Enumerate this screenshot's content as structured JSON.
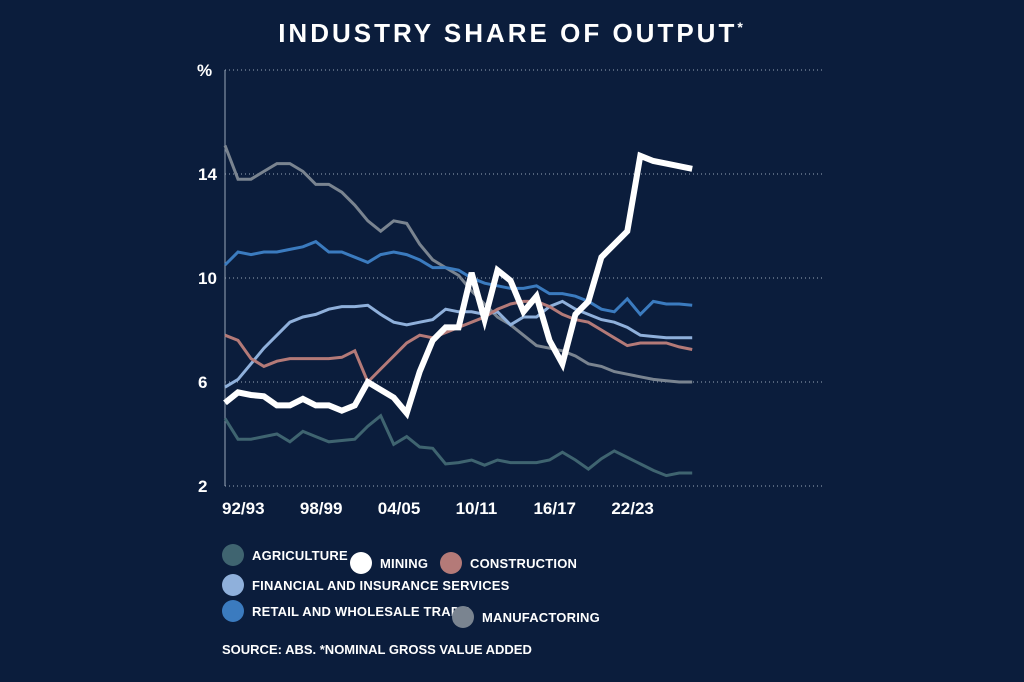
{
  "chart_data": {
    "type": "line",
    "title": "INDUSTRY SHARE OF OUTPUT",
    "title_mark": "*",
    "ylabel": "%",
    "ylim": [
      2,
      18
    ],
    "yticks": [
      2,
      6,
      10,
      14
    ],
    "xlim": [
      0,
      46
    ],
    "xticks": [
      {
        "x": 0,
        "label": "92/93"
      },
      {
        "x": 6,
        "label": "98/99"
      },
      {
        "x": 12,
        "label": "04/05"
      },
      {
        "x": 18,
        "label": "10/11"
      },
      {
        "x": 24,
        "label": "16/17"
      },
      {
        "x": 30,
        "label": "22/23"
      }
    ],
    "grid": true,
    "legend_position": "bottom-left",
    "source": "SOURCE: ABS. *NOMINAL GROSS VALUE ADDED",
    "series": [
      {
        "name": "AGRICULTURE",
        "color": "#3f6470",
        "width": 3,
        "values": [
          [
            0,
            4.6
          ],
          [
            1,
            3.8
          ],
          [
            2,
            3.8
          ],
          [
            3,
            3.9
          ],
          [
            4,
            4.0
          ],
          [
            5,
            3.7
          ],
          [
            6,
            4.1
          ],
          [
            7,
            3.9
          ],
          [
            8,
            3.7
          ],
          [
            9,
            3.75
          ],
          [
            10,
            3.8
          ],
          [
            11,
            4.3
          ],
          [
            12,
            4.7
          ],
          [
            13,
            3.6
          ],
          [
            14,
            3.9
          ],
          [
            15,
            3.5
          ],
          [
            16,
            3.45
          ],
          [
            17,
            2.85
          ],
          [
            18,
            2.9
          ],
          [
            19,
            3.0
          ],
          [
            20,
            2.8
          ],
          [
            21,
            3.0
          ],
          [
            22,
            2.9
          ],
          [
            23,
            2.9
          ],
          [
            24,
            2.9
          ],
          [
            25,
            3.0
          ],
          [
            26,
            3.3
          ],
          [
            27,
            3.0
          ],
          [
            28,
            2.65
          ],
          [
            29,
            3.05
          ],
          [
            30,
            3.35
          ],
          [
            31,
            3.1
          ],
          [
            32,
            2.85
          ],
          [
            33,
            2.6
          ],
          [
            34,
            2.4
          ],
          [
            35,
            2.5
          ],
          [
            36,
            2.5
          ]
        ]
      },
      {
        "name": "MANUFACTORING",
        "color": "#7a8490",
        "width": 3,
        "values": [
          [
            0,
            15.1
          ],
          [
            1,
            13.8
          ],
          [
            2,
            13.8
          ],
          [
            3,
            14.1
          ],
          [
            4,
            14.4
          ],
          [
            5,
            14.4
          ],
          [
            6,
            14.1
          ],
          [
            7,
            13.6
          ],
          [
            8,
            13.6
          ],
          [
            9,
            13.3
          ],
          [
            10,
            12.8
          ],
          [
            11,
            12.2
          ],
          [
            12,
            11.8
          ],
          [
            13,
            12.2
          ],
          [
            14,
            12.1
          ],
          [
            15,
            11.3
          ],
          [
            16,
            10.7
          ],
          [
            17,
            10.4
          ],
          [
            18,
            10.1
          ],
          [
            19,
            9.5
          ],
          [
            20,
            9.0
          ],
          [
            21,
            8.5
          ],
          [
            22,
            8.2
          ],
          [
            23,
            7.8
          ],
          [
            24,
            7.4
          ],
          [
            25,
            7.3
          ],
          [
            26,
            7.2
          ],
          [
            27,
            7.0
          ],
          [
            28,
            6.7
          ],
          [
            29,
            6.6
          ],
          [
            30,
            6.4
          ],
          [
            31,
            6.3
          ],
          [
            32,
            6.2
          ],
          [
            33,
            6.1
          ],
          [
            34,
            6.05
          ],
          [
            35,
            6.0
          ],
          [
            36,
            6.0
          ]
        ]
      },
      {
        "name": "RETAIL AND WHOLESALE TRADE",
        "color": "#3b7bbf",
        "width": 3,
        "values": [
          [
            0,
            10.5
          ],
          [
            1,
            11.0
          ],
          [
            2,
            10.9
          ],
          [
            3,
            11.0
          ],
          [
            4,
            11.0
          ],
          [
            5,
            11.1
          ],
          [
            6,
            11.2
          ],
          [
            7,
            11.4
          ],
          [
            8,
            11.0
          ],
          [
            9,
            11.0
          ],
          [
            10,
            10.8
          ],
          [
            11,
            10.6
          ],
          [
            12,
            10.9
          ],
          [
            13,
            11.0
          ],
          [
            14,
            10.9
          ],
          [
            15,
            10.7
          ],
          [
            16,
            10.4
          ],
          [
            17,
            10.4
          ],
          [
            18,
            10.3
          ],
          [
            19,
            10.0
          ],
          [
            20,
            9.8
          ],
          [
            21,
            9.7
          ],
          [
            22,
            9.6
          ],
          [
            23,
            9.6
          ],
          [
            24,
            9.7
          ],
          [
            25,
            9.4
          ],
          [
            26,
            9.4
          ],
          [
            27,
            9.3
          ],
          [
            28,
            9.1
          ],
          [
            29,
            8.8
          ],
          [
            30,
            8.7
          ],
          [
            31,
            9.2
          ],
          [
            32,
            8.6
          ],
          [
            33,
            9.1
          ],
          [
            34,
            9.0
          ],
          [
            35,
            9.0
          ],
          [
            36,
            8.95
          ]
        ]
      },
      {
        "name": "FINANCIAL AND INSURANCE SERVICES",
        "color": "#8fb0db",
        "width": 3,
        "values": [
          [
            0,
            5.8
          ],
          [
            1,
            6.1
          ],
          [
            2,
            6.7
          ],
          [
            3,
            7.3
          ],
          [
            4,
            7.8
          ],
          [
            5,
            8.3
          ],
          [
            6,
            8.5
          ],
          [
            7,
            8.6
          ],
          [
            8,
            8.8
          ],
          [
            9,
            8.9
          ],
          [
            10,
            8.9
          ],
          [
            11,
            8.95
          ],
          [
            12,
            8.6
          ],
          [
            13,
            8.3
          ],
          [
            14,
            8.2
          ],
          [
            15,
            8.3
          ],
          [
            16,
            8.4
          ],
          [
            17,
            8.8
          ],
          [
            18,
            8.7
          ],
          [
            19,
            8.7
          ],
          [
            20,
            8.6
          ],
          [
            21,
            8.7
          ],
          [
            22,
            8.2
          ],
          [
            23,
            8.5
          ],
          [
            24,
            8.5
          ],
          [
            25,
            8.9
          ],
          [
            26,
            9.1
          ],
          [
            27,
            8.8
          ],
          [
            28,
            8.6
          ],
          [
            29,
            8.4
          ],
          [
            30,
            8.3
          ],
          [
            31,
            8.1
          ],
          [
            32,
            7.8
          ],
          [
            33,
            7.75
          ],
          [
            34,
            7.7
          ],
          [
            35,
            7.7
          ],
          [
            36,
            7.7
          ]
        ]
      },
      {
        "name": "CONSTRUCTION",
        "color": "#b47a78",
        "width": 3,
        "values": [
          [
            0,
            7.8
          ],
          [
            1,
            7.6
          ],
          [
            2,
            6.9
          ],
          [
            3,
            6.6
          ],
          [
            4,
            6.8
          ],
          [
            5,
            6.9
          ],
          [
            6,
            6.9
          ],
          [
            7,
            6.9
          ],
          [
            8,
            6.9
          ],
          [
            9,
            6.95
          ],
          [
            10,
            7.2
          ],
          [
            11,
            6.0
          ],
          [
            12,
            6.5
          ],
          [
            13,
            7.0
          ],
          [
            14,
            7.5
          ],
          [
            15,
            7.8
          ],
          [
            16,
            7.7
          ],
          [
            17,
            7.9
          ],
          [
            18,
            8.1
          ],
          [
            19,
            8.3
          ],
          [
            20,
            8.5
          ],
          [
            21,
            8.8
          ],
          [
            22,
            9.0
          ],
          [
            23,
            9.1
          ],
          [
            24,
            9.1
          ],
          [
            25,
            8.9
          ],
          [
            26,
            8.6
          ],
          [
            27,
            8.4
          ],
          [
            28,
            8.3
          ],
          [
            29,
            8.0
          ],
          [
            30,
            7.7
          ],
          [
            31,
            7.4
          ],
          [
            32,
            7.5
          ],
          [
            33,
            7.5
          ],
          [
            34,
            7.5
          ],
          [
            35,
            7.35
          ],
          [
            36,
            7.25
          ]
        ]
      },
      {
        "name": "MINING",
        "color": "#ffffff",
        "width": 6,
        "values": [
          [
            0,
            5.2
          ],
          [
            1,
            5.6
          ],
          [
            2,
            5.5
          ],
          [
            3,
            5.45
          ],
          [
            4,
            5.1
          ],
          [
            5,
            5.1
          ],
          [
            6,
            5.35
          ],
          [
            7,
            5.1
          ],
          [
            8,
            5.1
          ],
          [
            9,
            4.9
          ],
          [
            10,
            5.1
          ],
          [
            11,
            6.0
          ],
          [
            12,
            5.7
          ],
          [
            13,
            5.4
          ],
          [
            14,
            4.8
          ],
          [
            15,
            6.4
          ],
          [
            16,
            7.6
          ],
          [
            17,
            8.1
          ],
          [
            18,
            8.1
          ],
          [
            19,
            10.2
          ],
          [
            20,
            8.4
          ],
          [
            21,
            10.3
          ],
          [
            22,
            9.9
          ],
          [
            23,
            8.7
          ],
          [
            24,
            9.3
          ],
          [
            25,
            7.6
          ],
          [
            26,
            6.7
          ],
          [
            27,
            8.6
          ],
          [
            28,
            9.1
          ],
          [
            29,
            10.8
          ],
          [
            30,
            11.3
          ],
          [
            31,
            11.8
          ],
          [
            32,
            14.7
          ],
          [
            33,
            14.5
          ],
          [
            34,
            14.4
          ],
          [
            35,
            14.3
          ],
          [
            36,
            14.2
          ]
        ]
      }
    ],
    "legend": [
      {
        "name": "AGRICULTURE",
        "color": "#3f6470"
      },
      {
        "name": "MINING",
        "color": "#ffffff"
      },
      {
        "name": "CONSTRUCTION",
        "color": "#b47a78"
      },
      {
        "name": "FINANCIAL AND INSURANCE SERVICES",
        "color": "#8fb0db"
      },
      {
        "name": "RETAIL AND WHOLESALE TRADE",
        "color": "#3b7bbf"
      },
      {
        "name": "MANUFACTORING",
        "color": "#7a8490"
      }
    ]
  },
  "colors": {
    "background": "#0b1d3c",
    "gridline": "#9aa6b8",
    "text": "#ffffff"
  }
}
